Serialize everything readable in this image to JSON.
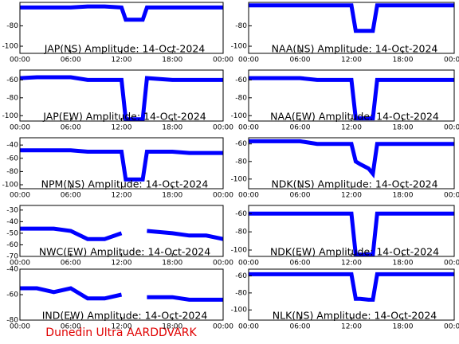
{
  "caption": "Dunedin Ultra AARDDVARK",
  "chart_data": [
    {
      "type": "line",
      "title": "JAP(NS) Amplitude: 14-Oct-2024",
      "color": "#0000ff",
      "x": [
        0,
        2,
        4,
        6,
        8,
        10,
        12,
        12.5,
        13,
        14,
        14.5,
        15,
        18,
        20,
        22,
        24
      ],
      "values": [
        -62,
        -62,
        -62,
        -62,
        -61,
        -61,
        -62,
        -74,
        -74,
        -74,
        -74,
        -62,
        -62,
        -62,
        -62,
        -62
      ],
      "xlim": [
        0,
        24
      ],
      "ylim": [
        -107,
        -57
      ],
      "xticks": [
        {
          "value": 0,
          "label": "00:00"
        },
        {
          "value": 6,
          "label": "06:00"
        },
        {
          "value": 12,
          "label": "12:00"
        },
        {
          "value": 18,
          "label": "18:00"
        },
        {
          "value": 24,
          "label": "00:00"
        }
      ],
      "yticks": [
        -100,
        -80
      ]
    },
    {
      "type": "line",
      "title": "NAA(NS) Amplitude: 14-Oct-2024",
      "color": "#0000ff",
      "x": [
        0,
        2,
        4,
        6,
        8,
        10,
        12,
        12.5,
        13,
        14,
        14.5,
        15,
        18,
        20,
        22,
        24
      ],
      "values": [
        -60,
        -60,
        -60,
        -60,
        -60,
        -60,
        -60,
        -85,
        -85,
        -85,
        -85,
        -60,
        -60,
        -60,
        -60,
        -60
      ],
      "xlim": [
        0,
        24
      ],
      "ylim": [
        -107,
        -57
      ],
      "xticks": [
        {
          "value": 0,
          "label": "00:00"
        },
        {
          "value": 6,
          "label": "06:00"
        },
        {
          "value": 12,
          "label": "12:00"
        },
        {
          "value": 18,
          "label": "18:00"
        },
        {
          "value": 24,
          "label": "00:00"
        }
      ],
      "yticks": [
        -100,
        -80
      ]
    },
    {
      "type": "line",
      "title": "JAP(EW) Amplitude: 14-Oct-2024",
      "color": "#0000ff",
      "x": [
        0,
        2,
        4,
        6,
        8,
        10,
        12,
        12.5,
        13,
        14,
        14.5,
        15,
        18,
        20,
        22,
        24
      ],
      "values": [
        -58,
        -57,
        -57,
        -57,
        -60,
        -60,
        -60,
        -104,
        -104,
        -104,
        -104,
        -58,
        -60,
        -60,
        -60,
        -60
      ],
      "xlim": [
        0,
        24
      ],
      "ylim": [
        -106,
        -49
      ],
      "xticks": [
        {
          "value": 0,
          "label": "00:00"
        },
        {
          "value": 6,
          "label": "06:00"
        },
        {
          "value": 12,
          "label": "12:00"
        },
        {
          "value": 18,
          "label": "18:00"
        },
        {
          "value": 24,
          "label": "00:00"
        }
      ],
      "yticks": [
        -100,
        -80,
        -60
      ]
    },
    {
      "type": "line",
      "title": "NAA(EW) Amplitude: 14-Oct-2024",
      "color": "#0000ff",
      "x": [
        0,
        2,
        4,
        6,
        8,
        10,
        12,
        12.5,
        13,
        14,
        14.5,
        15,
        18,
        20,
        22,
        24
      ],
      "values": [
        -58,
        -58,
        -58,
        -58,
        -60,
        -60,
        -60,
        -103,
        -103,
        -103,
        -103,
        -60,
        -60,
        -60,
        -60,
        -60
      ],
      "xlim": [
        0,
        24
      ],
      "ylim": [
        -106,
        -49
      ],
      "xticks": [
        {
          "value": 0,
          "label": "00:00"
        },
        {
          "value": 6,
          "label": "06:00"
        },
        {
          "value": 12,
          "label": "12:00"
        },
        {
          "value": 18,
          "label": "18:00"
        },
        {
          "value": 24,
          "label": "00:00"
        }
      ],
      "yticks": [
        -100,
        -80,
        -60
      ]
    },
    {
      "type": "line",
      "title": "NPM(NS) Amplitude: 14-Oct-2024",
      "color": "#0000ff",
      "x": [
        0,
        2,
        4,
        6,
        8,
        10,
        12,
        12.5,
        13,
        14,
        14.5,
        15,
        18,
        20,
        22,
        24
      ],
      "values": [
        -48,
        -48,
        -48,
        -48,
        -50,
        -50,
        -50,
        -92,
        -92,
        -92,
        -92,
        -50,
        -50,
        -52,
        -52,
        -52
      ],
      "xlim": [
        0,
        24
      ],
      "ylim": [
        -106,
        -29
      ],
      "xticks": [
        {
          "value": 0,
          "label": "00:00"
        },
        {
          "value": 6,
          "label": "06:00"
        },
        {
          "value": 12,
          "label": "12:00"
        },
        {
          "value": 18,
          "label": "18:00"
        },
        {
          "value": 24,
          "label": "00:00"
        }
      ],
      "yticks": [
        -100,
        -80,
        -60,
        -40
      ]
    },
    {
      "type": "line",
      "title": "NDK(NS) Amplitude: 14-Oct-2024",
      "color": "#0000ff",
      "x": [
        0,
        2,
        4,
        6,
        8,
        10,
        12,
        12.5,
        13,
        14,
        14.5,
        15,
        18,
        20,
        22,
        24
      ],
      "values": [
        -57,
        -57,
        -57,
        -57,
        -60,
        -60,
        -60,
        -80,
        -83,
        -88,
        -94,
        -60,
        -60,
        -60,
        -60,
        -60
      ],
      "xlim": [
        0,
        24
      ],
      "ylim": [
        -111,
        -53
      ],
      "xticks": [
        {
          "value": 0,
          "label": "00:00"
        },
        {
          "value": 6,
          "label": "06:00"
        },
        {
          "value": 12,
          "label": "12:00"
        },
        {
          "value": 18,
          "label": "18:00"
        },
        {
          "value": 24,
          "label": "00:00"
        }
      ],
      "yticks": [
        -100,
        -80,
        -60
      ]
    },
    {
      "type": "line",
      "title": "NWC(EW) Amplitude: 14-Oct-2024",
      "color": "#0000ff",
      "x": [
        0,
        2,
        4,
        6,
        8,
        10,
        12,
        12.5,
        13,
        14,
        14.5,
        15,
        18,
        20,
        22,
        24
      ],
      "values": [
        -46,
        -46,
        -46,
        -48,
        -55,
        -55,
        -50,
        null,
        null,
        null,
        null,
        -48,
        -50,
        -52,
        -52,
        -55
      ],
      "xlim": [
        0,
        24
      ],
      "ylim": [
        -70,
        -26
      ],
      "xticks": [
        {
          "value": 0,
          "label": "00:00"
        },
        {
          "value": 6,
          "label": "06:00"
        },
        {
          "value": 12,
          "label": "12:00"
        },
        {
          "value": 18,
          "label": "18:00"
        },
        {
          "value": 24,
          "label": "00:00"
        }
      ],
      "yticks": [
        -70,
        -60,
        -50,
        -40,
        -30
      ]
    },
    {
      "type": "line",
      "title": "NDK(EW) Amplitude: 14-Oct-2024",
      "color": "#0000ff",
      "x": [
        0,
        2,
        4,
        6,
        8,
        10,
        12,
        12.5,
        13,
        14,
        14.5,
        15,
        18,
        20,
        22,
        24
      ],
      "values": [
        -60,
        -60,
        -60,
        -60,
        -60,
        -60,
        -60,
        -105,
        -105,
        -105,
        -105,
        -60,
        -60,
        -60,
        -60,
        -60
      ],
      "xlim": [
        0,
        24
      ],
      "ylim": [
        -107,
        -51
      ],
      "xticks": [
        {
          "value": 0,
          "label": "00:00"
        },
        {
          "value": 6,
          "label": "06:00"
        },
        {
          "value": 12,
          "label": "12:00"
        },
        {
          "value": 18,
          "label": "18:00"
        },
        {
          "value": 24,
          "label": "00:00"
        }
      ],
      "yticks": [
        -100,
        -80,
        -60
      ]
    },
    {
      "type": "line",
      "title": "IND(EW) Amplitude: 14-Oct-2024",
      "color": "#0000ff",
      "x": [
        0,
        2,
        4,
        6,
        8,
        10,
        12,
        12.5,
        13,
        14,
        14.5,
        15,
        18,
        20,
        22,
        24
      ],
      "values": [
        -55,
        -55,
        -58,
        -55,
        -63,
        -63,
        -60,
        null,
        null,
        null,
        null,
        -62,
        -62,
        -64,
        -64,
        -64
      ],
      "xlim": [
        0,
        24
      ],
      "ylim": [
        -80,
        -40
      ],
      "xticks": [
        {
          "value": 0,
          "label": "00:00"
        },
        {
          "value": 6,
          "label": "06:00"
        },
        {
          "value": 12,
          "label": "12:00"
        },
        {
          "value": 18,
          "label": "18:00"
        },
        {
          "value": 24,
          "label": "00:00"
        }
      ],
      "yticks": [
        -80,
        -60,
        -40
      ]
    },
    {
      "type": "line",
      "title": "NLK(NS) Amplitude: 14-Oct-2024",
      "color": "#0000ff",
      "x": [
        0,
        2,
        4,
        6,
        8,
        10,
        12,
        12.5,
        13,
        14,
        14.5,
        15,
        18,
        20,
        22,
        24
      ],
      "values": [
        -58,
        -58,
        -58,
        -58,
        -58,
        -58,
        -58,
        -87,
        -87,
        -88,
        -88,
        -58,
        -58,
        -58,
        -58,
        -58
      ],
      "xlim": [
        0,
        24
      ],
      "ylim": [
        -112,
        -52
      ],
      "xticks": [
        {
          "value": 0,
          "label": "00:00"
        },
        {
          "value": 6,
          "label": "06:00"
        },
        {
          "value": 12,
          "label": "12:00"
        },
        {
          "value": 18,
          "label": "18:00"
        },
        {
          "value": 24,
          "label": "00:00"
        }
      ],
      "yticks": [
        -100,
        -80,
        -60
      ]
    }
  ]
}
